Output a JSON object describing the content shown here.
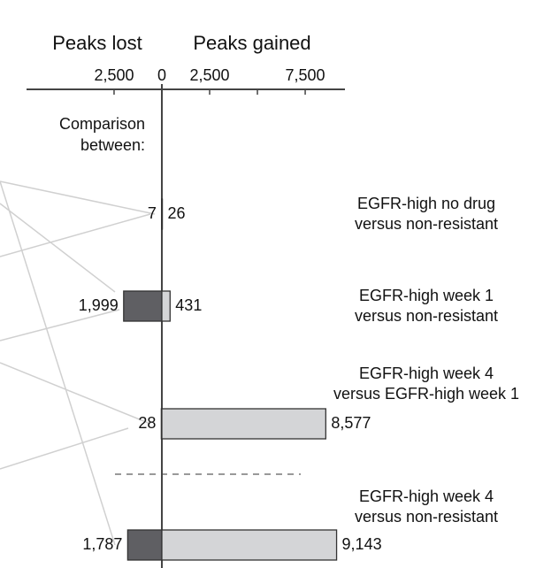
{
  "chart_data": {
    "type": "diverging-bar",
    "left_heading": "Peaks lost",
    "right_heading": "Peaks gained",
    "category_heading": "Comparison\nbetween:",
    "categories": [
      "EGFR-high no drug\nversus non-resistant",
      "EGFR-high week 1\nversus non-resistant",
      "EGFR-high week 4\nversus EGFR-high week 1",
      "EGFR-high week 4\nversus non-resistant"
    ],
    "series": [
      {
        "name": "Peaks lost",
        "side": "left",
        "color": "#5f5f63",
        "values": [
          7,
          1999,
          28,
          1787
        ],
        "value_labels": [
          "7",
          "1,999",
          "28",
          "1,787"
        ]
      },
      {
        "name": "Peaks gained",
        "side": "right",
        "color": "#d4d5d7",
        "values": [
          26,
          431,
          8577,
          9143
        ],
        "value_labels": [
          "26",
          "431",
          "8,577",
          "9,143"
        ]
      }
    ],
    "xlim": [
      -7080,
      9580
    ],
    "xticks": [
      {
        "value": -2500,
        "label": "2,500"
      },
      0,
      {
        "value": 2500,
        "label": "2,500"
      },
      {
        "value": 7500,
        "label": "7,500"
      }
    ],
    "minor_xticks": [
      5000
    ]
  }
}
